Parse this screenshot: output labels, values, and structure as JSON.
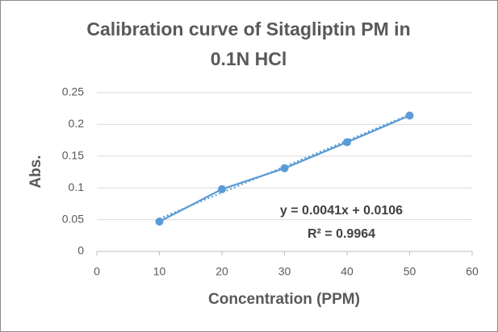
{
  "chart_data": {
    "type": "scatter",
    "title": [
      "Calibration curve of Sitagliptin PM in",
      "0.1N HCl"
    ],
    "x_label": "Concentration (PPM)",
    "y_label": "Abs.",
    "x": [
      10,
      20,
      30,
      40,
      50
    ],
    "series": [
      {
        "name": "Abs.",
        "color": "#5b9bd5",
        "values": [
          0.047,
          0.098,
          0.131,
          0.172,
          0.214
        ]
      }
    ],
    "trendline": {
      "slope": 0.0041,
      "intercept": 0.0106,
      "label": "y = 0.0041x + 0.0106",
      "r2_label": "R² = 0.9964",
      "style": "dotted"
    },
    "xlim": [
      0,
      60
    ],
    "xticks": [
      0,
      10,
      20,
      30,
      40,
      50,
      60
    ],
    "ylim": [
      0,
      0.25
    ],
    "yticks": [
      0,
      0.05,
      0.1,
      0.15,
      0.2,
      0.25
    ],
    "grid": true
  }
}
